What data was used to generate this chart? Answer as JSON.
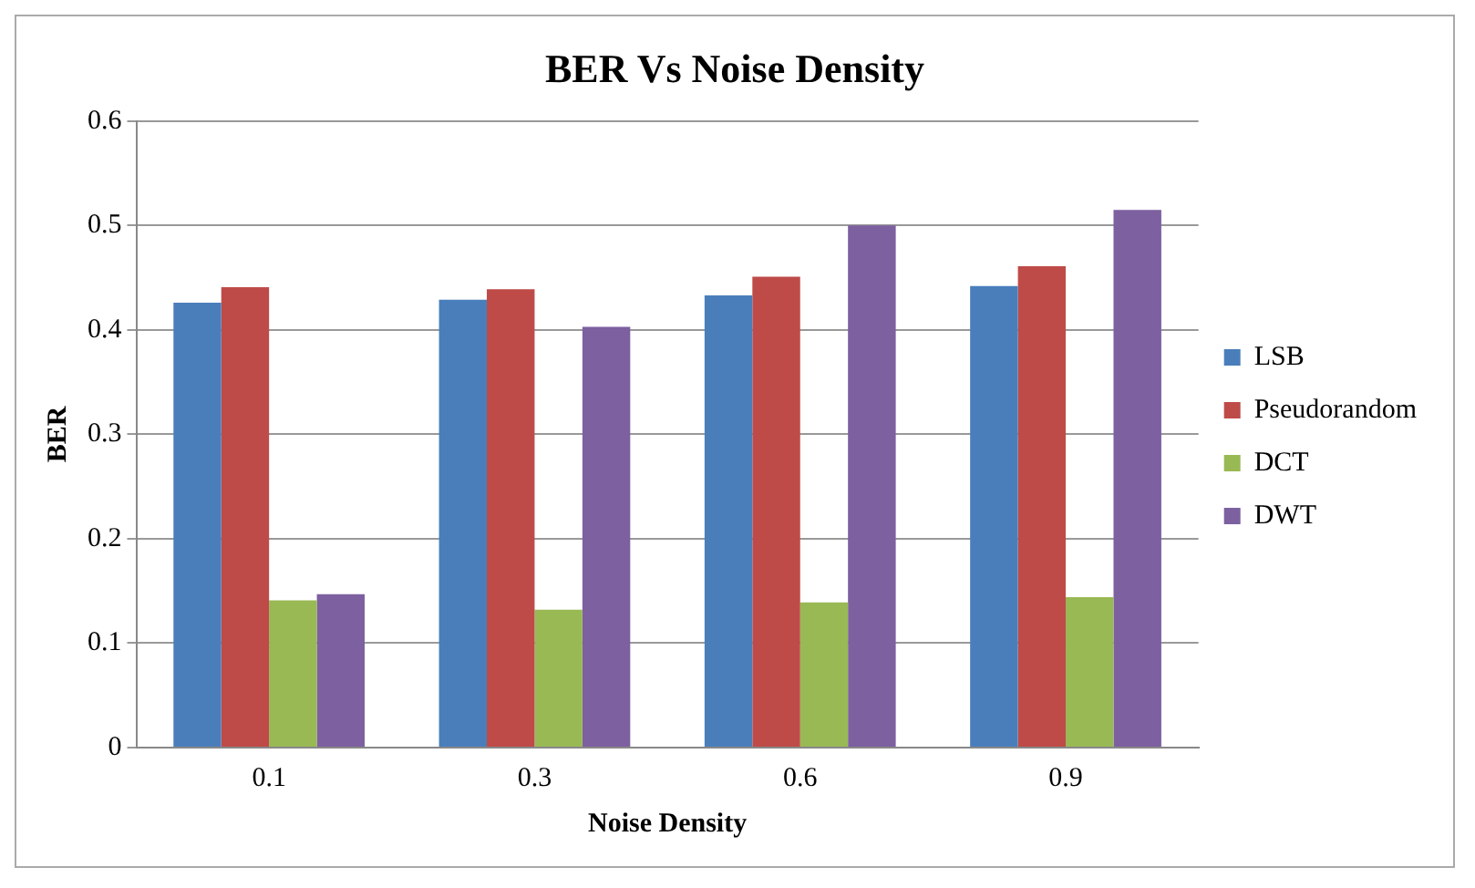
{
  "chart_data": {
    "type": "bar",
    "title": "BER Vs Noise Density",
    "xlabel": "Noise Density",
    "ylabel": "BER",
    "categories": [
      "0.1",
      "0.3",
      "0.6",
      "0.9"
    ],
    "series": [
      {
        "name": "LSB",
        "color": "#4a7ebb",
        "values": [
          0.426,
          0.429,
          0.433,
          0.442
        ]
      },
      {
        "name": "Pseudorandom",
        "color": "#be4b48",
        "values": [
          0.441,
          0.439,
          0.451,
          0.461
        ]
      },
      {
        "name": "DCT",
        "color": "#98b954",
        "values": [
          0.141,
          0.132,
          0.139,
          0.144
        ]
      },
      {
        "name": "DWT",
        "color": "#7d60a0",
        "values": [
          0.147,
          0.403,
          0.5,
          0.515
        ]
      }
    ],
    "ylim": [
      0,
      0.6
    ],
    "yticks": [
      0,
      0.1,
      0.2,
      0.3,
      0.4,
      0.5,
      0.6
    ],
    "grid": "y",
    "legend": "right"
  }
}
